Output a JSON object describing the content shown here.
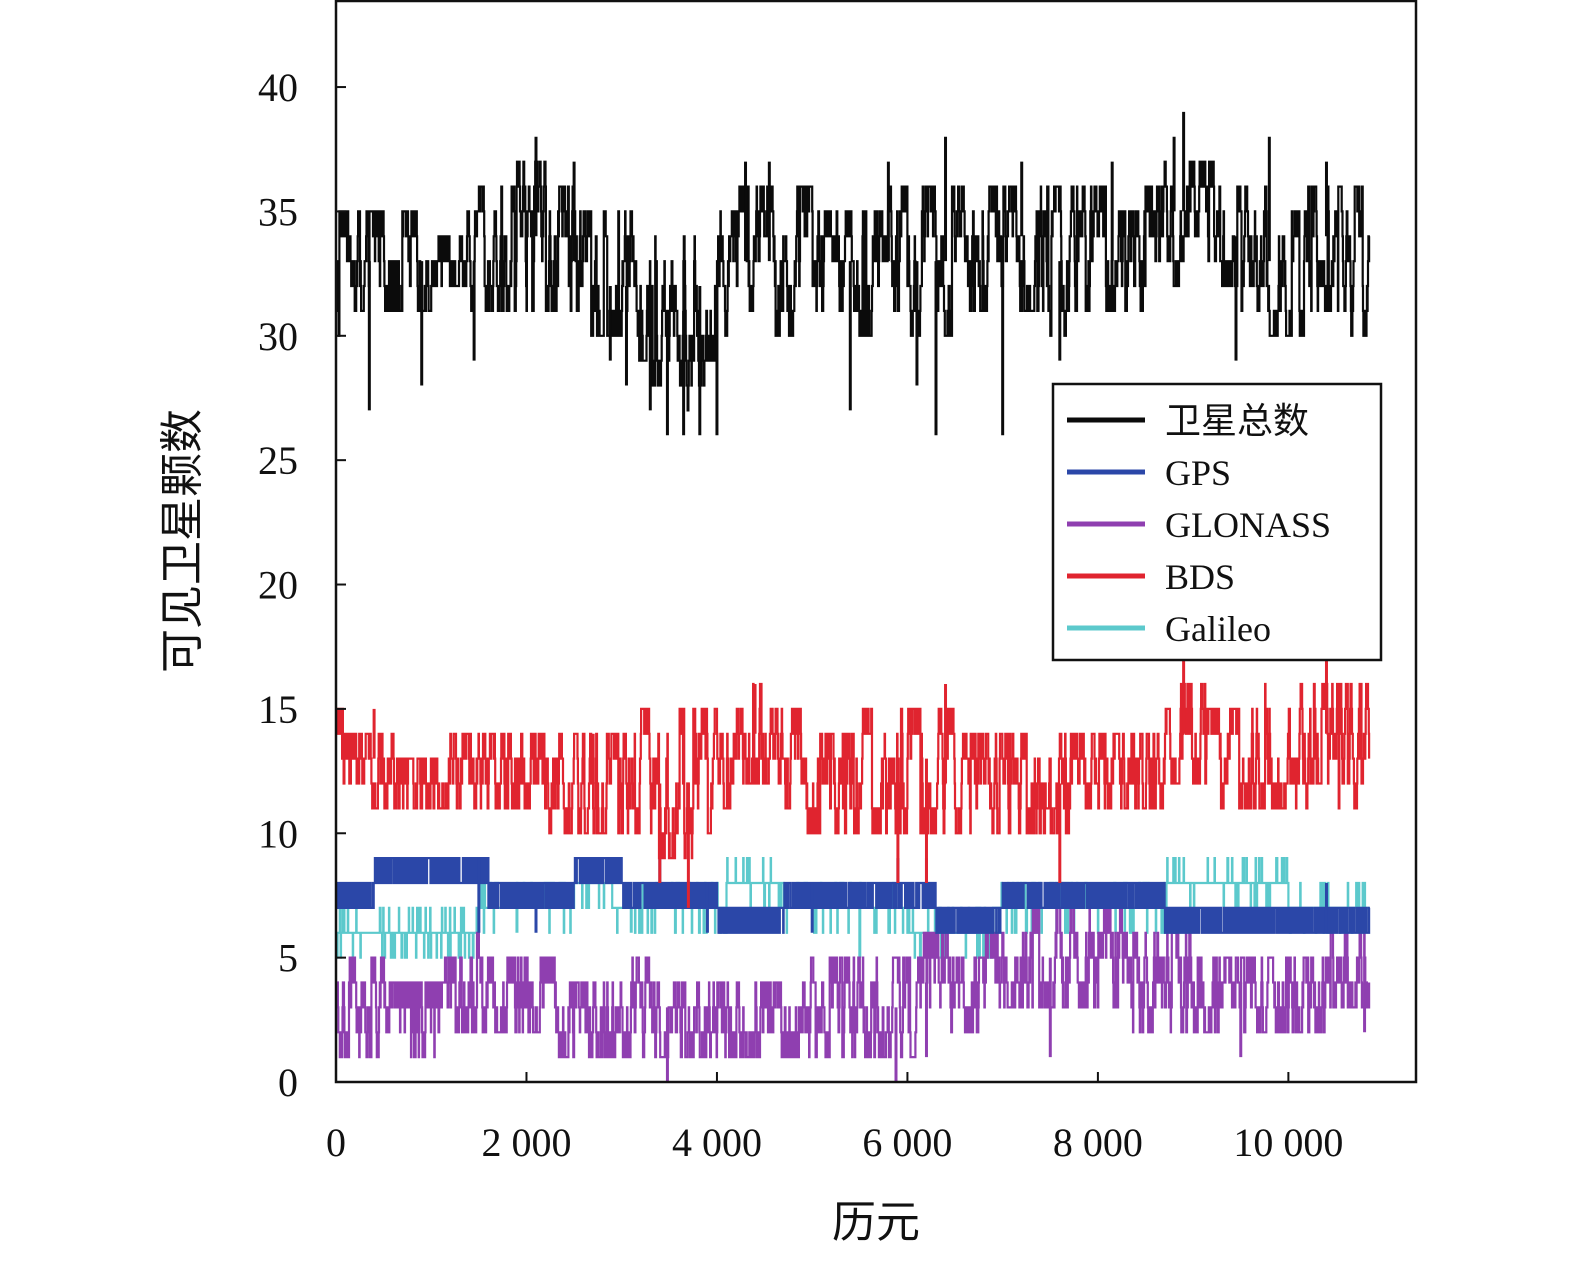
{
  "chart_data": {
    "type": "line",
    "title": "",
    "xlabel": "历元",
    "ylabel": "可见卫星颗数",
    "xlim": [
      0,
      11340
    ],
    "ylim": [
      0,
      43.5
    ],
    "x_ticks": [
      0,
      2000,
      4000,
      6000,
      8000,
      10000
    ],
    "x_tick_labels": [
      "0",
      "2 000",
      "4 000",
      "6 000",
      "8 000",
      "10 000"
    ],
    "y_ticks": [
      0,
      5,
      10,
      15,
      20,
      25,
      30,
      35,
      40
    ],
    "y_tick_labels": [
      "0",
      "5",
      "10",
      "15",
      "20",
      "25",
      "30",
      "35",
      "40"
    ],
    "grid": false,
    "legend_position": "right",
    "x_last": 10850,
    "series": [
      {
        "name": "卫星总数",
        "color": "#0b0b0b",
        "band": [
          [
            0,
            30,
            35
          ],
          [
            400,
            31,
            35
          ],
          [
            800,
            31,
            35
          ],
          [
            1200,
            32,
            34
          ],
          [
            1600,
            31,
            36
          ],
          [
            2000,
            31,
            37
          ],
          [
            2400,
            31,
            36
          ],
          [
            2800,
            30,
            35
          ],
          [
            3200,
            29,
            35
          ],
          [
            3600,
            27,
            35
          ],
          [
            3800,
            28,
            35
          ],
          [
            4000,
            29,
            35
          ],
          [
            4400,
            31,
            36
          ],
          [
            4800,
            30,
            36
          ],
          [
            5200,
            30,
            35
          ],
          [
            5600,
            30,
            35
          ],
          [
            6000,
            30,
            36
          ],
          [
            6400,
            30,
            36
          ],
          [
            6800,
            31,
            36
          ],
          [
            7200,
            31,
            36
          ],
          [
            7600,
            30,
            36
          ],
          [
            8000,
            31,
            36
          ],
          [
            8400,
            31,
            35
          ],
          [
            8800,
            32,
            37
          ],
          [
            9000,
            34,
            37
          ],
          [
            9200,
            33,
            37
          ],
          [
            9600,
            31,
            36
          ],
          [
            10000,
            30,
            35
          ],
          [
            10400,
            31,
            36
          ],
          [
            10850,
            30,
            36
          ]
        ],
        "spikes": [
          [
            350,
            27
          ],
          [
            900,
            28
          ],
          [
            1450,
            29
          ],
          [
            2100,
            38
          ],
          [
            2500,
            37
          ],
          [
            2880,
            29
          ],
          [
            3050,
            28
          ],
          [
            3300,
            27
          ],
          [
            3480,
            26
          ],
          [
            3650,
            26
          ],
          [
            3820,
            26
          ],
          [
            4000,
            26
          ],
          [
            4300,
            37
          ],
          [
            4550,
            37
          ],
          [
            5400,
            27
          ],
          [
            5800,
            37
          ],
          [
            6100,
            28
          ],
          [
            6300,
            26
          ],
          [
            6400,
            38
          ],
          [
            7000,
            26
          ],
          [
            7200,
            37
          ],
          [
            7600,
            29
          ],
          [
            8150,
            37
          ],
          [
            8800,
            38
          ],
          [
            8900,
            39
          ],
          [
            9450,
            29
          ],
          [
            9800,
            38
          ],
          [
            10400,
            37
          ]
        ]
      },
      {
        "name": "GPS",
        "color": "#2b47a8",
        "steps": [
          [
            0,
            7
          ],
          [
            150,
            8
          ],
          [
            400,
            9
          ],
          [
            1600,
            8
          ],
          [
            2300,
            8
          ],
          [
            2500,
            9
          ],
          [
            3000,
            8
          ],
          [
            4000,
            7
          ],
          [
            4700,
            8
          ],
          [
            6300,
            7
          ],
          [
            7000,
            8
          ],
          [
            8700,
            7
          ],
          [
            9000,
            7
          ],
          [
            9500,
            6
          ],
          [
            10850,
            6
          ]
        ],
        "steps_alt": [
          [
            0,
            8
          ],
          [
            150,
            7
          ],
          [
            400,
            8
          ],
          [
            1600,
            7
          ],
          [
            2300,
            7
          ],
          [
            2500,
            8
          ],
          [
            3000,
            7
          ],
          [
            4000,
            6
          ],
          [
            4700,
            7
          ],
          [
            6300,
            6
          ],
          [
            7000,
            7
          ],
          [
            8700,
            6
          ],
          [
            9000,
            6
          ],
          [
            9500,
            7
          ],
          [
            10850,
            7
          ]
        ],
        "spikes": [
          [
            1500,
            6
          ],
          [
            2100,
            6
          ],
          [
            3400,
            9
          ],
          [
            3900,
            6
          ],
          [
            5000,
            6
          ],
          [
            5900,
            9
          ],
          [
            6200,
            9
          ],
          [
            8600,
            8
          ],
          [
            10400,
            8
          ]
        ]
      },
      {
        "name": "GLONASS",
        "color": "#8f3fb0",
        "band": [
          [
            0,
            1,
            5
          ],
          [
            1000,
            1,
            4
          ],
          [
            1500,
            2,
            6
          ],
          [
            2000,
            2,
            5
          ],
          [
            2600,
            1,
            4
          ],
          [
            3000,
            1,
            5
          ],
          [
            3600,
            1,
            4
          ],
          [
            4000,
            1,
            4
          ],
          [
            4800,
            1,
            4
          ],
          [
            5000,
            1,
            5
          ],
          [
            6000,
            1,
            5
          ],
          [
            6300,
            2,
            6
          ],
          [
            6600,
            2,
            5
          ],
          [
            7000,
            3,
            6
          ],
          [
            7600,
            3,
            7
          ],
          [
            8000,
            3,
            7
          ],
          [
            8600,
            2,
            6
          ],
          [
            9400,
            2,
            5
          ],
          [
            10000,
            2,
            5
          ],
          [
            10850,
            3,
            6
          ]
        ],
        "spikes": [
          [
            3480,
            0
          ],
          [
            5880,
            0
          ],
          [
            6200,
            1
          ],
          [
            7500,
            1
          ],
          [
            9500,
            1
          ],
          [
            10800,
            2
          ]
        ]
      },
      {
        "name": "BDS",
        "color": "#e0242f",
        "band": [
          [
            0,
            12,
            15
          ],
          [
            200,
            12,
            14
          ],
          [
            400,
            11,
            14
          ],
          [
            800,
            11,
            13
          ],
          [
            1600,
            11,
            14
          ],
          [
            2000,
            11,
            14
          ],
          [
            2400,
            10,
            14
          ],
          [
            3000,
            10,
            14
          ],
          [
            3400,
            9,
            15
          ],
          [
            3600,
            9,
            15
          ],
          [
            4000,
            10,
            15
          ],
          [
            4200,
            12,
            16
          ],
          [
            4400,
            12,
            16
          ],
          [
            4700,
            11,
            15
          ],
          [
            5200,
            10,
            14
          ],
          [
            5800,
            10,
            15
          ],
          [
            6200,
            10,
            15
          ],
          [
            6800,
            10,
            14
          ],
          [
            7200,
            10,
            14
          ],
          [
            7600,
            10,
            14
          ],
          [
            8000,
            11,
            14
          ],
          [
            8600,
            11,
            14
          ],
          [
            8900,
            12,
            16
          ],
          [
            9400,
            11,
            15
          ],
          [
            10000,
            11,
            16
          ],
          [
            10400,
            12,
            16
          ],
          [
            10850,
            10,
            16
          ]
        ],
        "spikes": [
          [
            400,
            15
          ],
          [
            2700,
            14
          ],
          [
            3400,
            8
          ],
          [
            3700,
            7
          ],
          [
            4400,
            16
          ],
          [
            5900,
            8
          ],
          [
            6200,
            8
          ],
          [
            6400,
            16
          ],
          [
            7600,
            8
          ],
          [
            8900,
            17
          ],
          [
            10400,
            17
          ]
        ]
      },
      {
        "name": "Galileo",
        "color": "#5cc9cc",
        "steps": [
          [
            0,
            6
          ],
          [
            1500,
            7
          ],
          [
            2500,
            8
          ],
          [
            2900,
            7
          ],
          [
            3500,
            7
          ],
          [
            4100,
            8
          ],
          [
            4700,
            7
          ],
          [
            6000,
            6
          ],
          [
            6900,
            7
          ],
          [
            8700,
            8
          ],
          [
            10000,
            7
          ],
          [
            10850,
            7
          ]
        ],
        "spikes": [
          [
            1200,
            5
          ],
          [
            1900,
            6
          ],
          [
            2600,
            8
          ],
          [
            3100,
            6
          ],
          [
            3800,
            8
          ],
          [
            4500,
            6
          ],
          [
            5500,
            5
          ],
          [
            6400,
            6
          ],
          [
            6900,
            6
          ]
        ]
      }
    ]
  }
}
